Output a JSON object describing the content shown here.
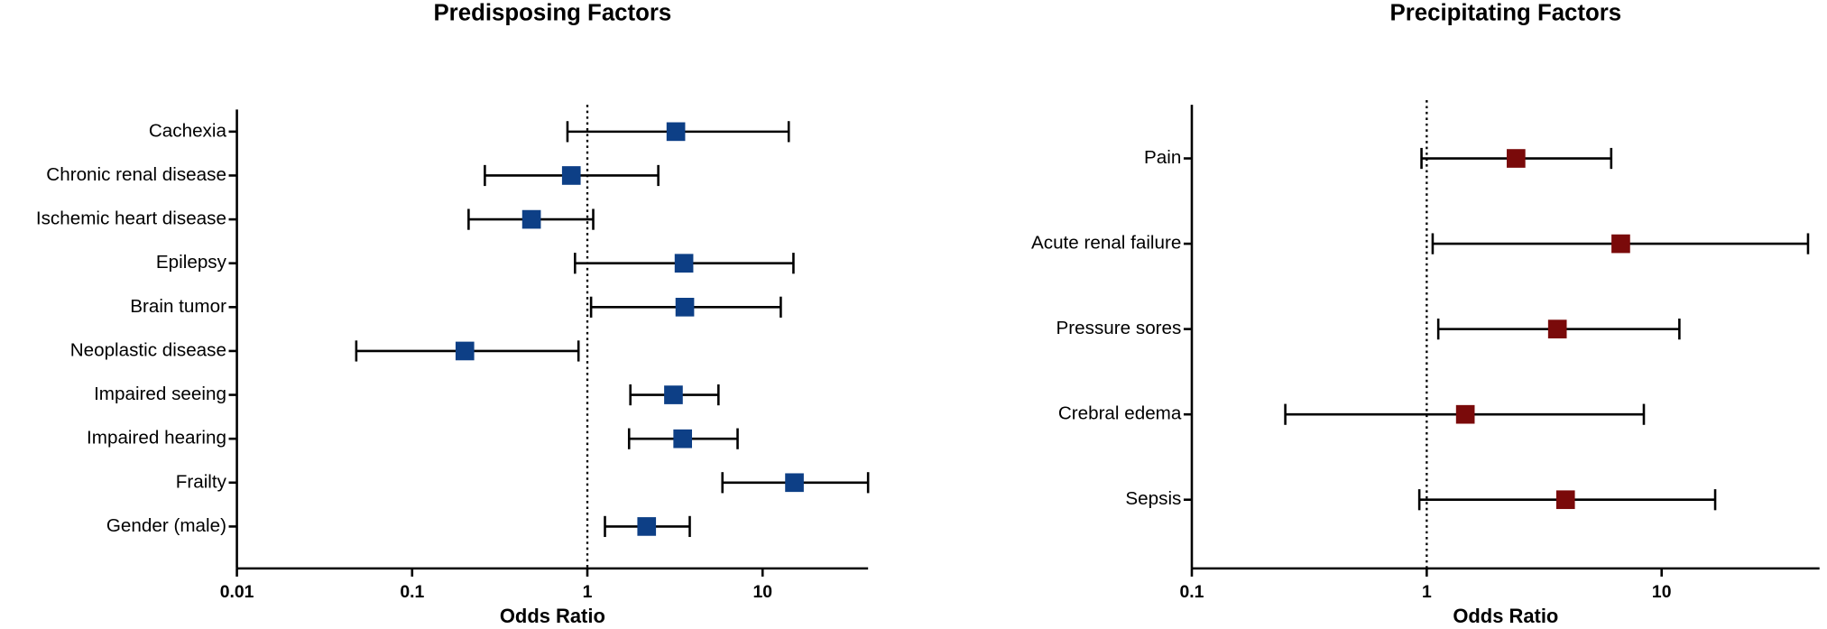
{
  "chart_data": [
    {
      "type": "forest",
      "title": "Predisposing Factors",
      "xlabel": "Odds Ratio",
      "xscale": "log",
      "categories": [
        "Cachexia",
        "Chronic renal disease",
        "Ischemic heart disease",
        "Epilepsy",
        "Brain tumor",
        "Neoplastic disease",
        "Impaired seeing",
        "Impaired hearing",
        "Frailty",
        "Gender (male)"
      ],
      "values": [
        3.2,
        0.81,
        0.48,
        3.56,
        3.6,
        0.2,
        3.1,
        3.5,
        15.2,
        2.18
      ],
      "lower": [
        0.77,
        0.26,
        0.21,
        0.85,
        1.05,
        0.048,
        1.76,
        1.73,
        5.9,
        1.26
      ],
      "upper": [
        14.1,
        2.54,
        1.08,
        15,
        12.7,
        0.89,
        5.6,
        7.2,
        40,
        3.84
      ],
      "color": "#0d3f86",
      "xlim": [
        0.01,
        40
      ],
      "xticks": [
        0.01,
        0.1,
        1,
        10
      ],
      "reference_line": 1
    },
    {
      "type": "forest",
      "title": "Precipitating Factors",
      "xlabel": "Odds Ratio",
      "xscale": "log",
      "categories": [
        "Pain",
        "Acute renal failure",
        "Pressure sores",
        "Crebral edema",
        "Sepsis"
      ],
      "values": [
        2.4,
        6.7,
        3.6,
        1.46,
        3.9
      ],
      "lower": [
        0.95,
        1.06,
        1.12,
        0.25,
        0.93
      ],
      "upper": [
        6.1,
        42,
        11.9,
        8.4,
        16.9
      ],
      "color": "#7a0a0a",
      "xlim": [
        0.1,
        47
      ],
      "xticks": [
        0.1,
        1,
        10
      ],
      "reference_line": 1
    }
  ]
}
